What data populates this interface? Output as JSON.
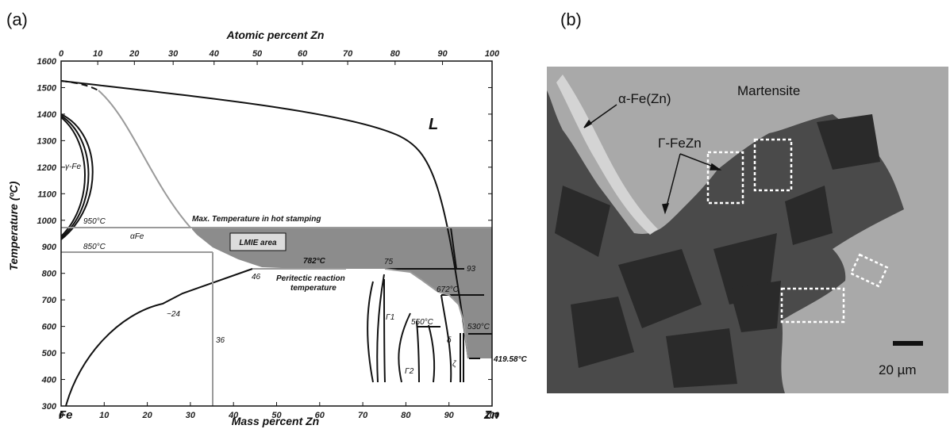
{
  "panel_a": {
    "label": "(a)",
    "top_axis_title": "Atomic percent Zn",
    "bottom_axis_title": "Mass percent  Zn",
    "y_axis_title": "Temperature (ºC)",
    "left_element": "Fe",
    "right_element": "Zn",
    "x_ticks": [
      "0",
      "10",
      "20",
      "30",
      "40",
      "50",
      "60",
      "70",
      "80",
      "90",
      "100"
    ],
    "top_ticks": [
      "0",
      "10",
      "20",
      "30",
      "40",
      "50",
      "60",
      "70",
      "80",
      "90",
      "100"
    ],
    "y_ticks": [
      "300",
      "400",
      "500",
      "600",
      "700",
      "800",
      "900",
      "1000",
      "1100",
      "1200",
      "1300",
      "1400",
      "1500",
      "1600"
    ],
    "annotations": {
      "liquid": "L",
      "gamma_fe": "γ-Fe",
      "alpha_fe": "αFe",
      "t950": "950°C",
      "t850": "850°C",
      "max_temp": "Max. Temperature in hot stamping",
      "lmie": "LMIE area",
      "t782": "782°C",
      "peritectic": "Peritectic reaction",
      "peritectic2": "temperature",
      "c46": "46",
      "c75": "75",
      "c93": "93",
      "t672": "672°C",
      "c24": "~24",
      "gamma1": "Γ1",
      "gamma2": "Γ2",
      "t550": "550°C",
      "t530": "530°C",
      "delta": "δ",
      "zeta": "ζ",
      "c36": "36",
      "t419": "419.58°C"
    }
  },
  "panel_b": {
    "label": "(b)",
    "martensite": "Martensite",
    "alpha_fezn": "α-Fe(Zn)",
    "gamma_fezn": "Γ-FeZn",
    "scale_bar": "20 µm"
  }
}
